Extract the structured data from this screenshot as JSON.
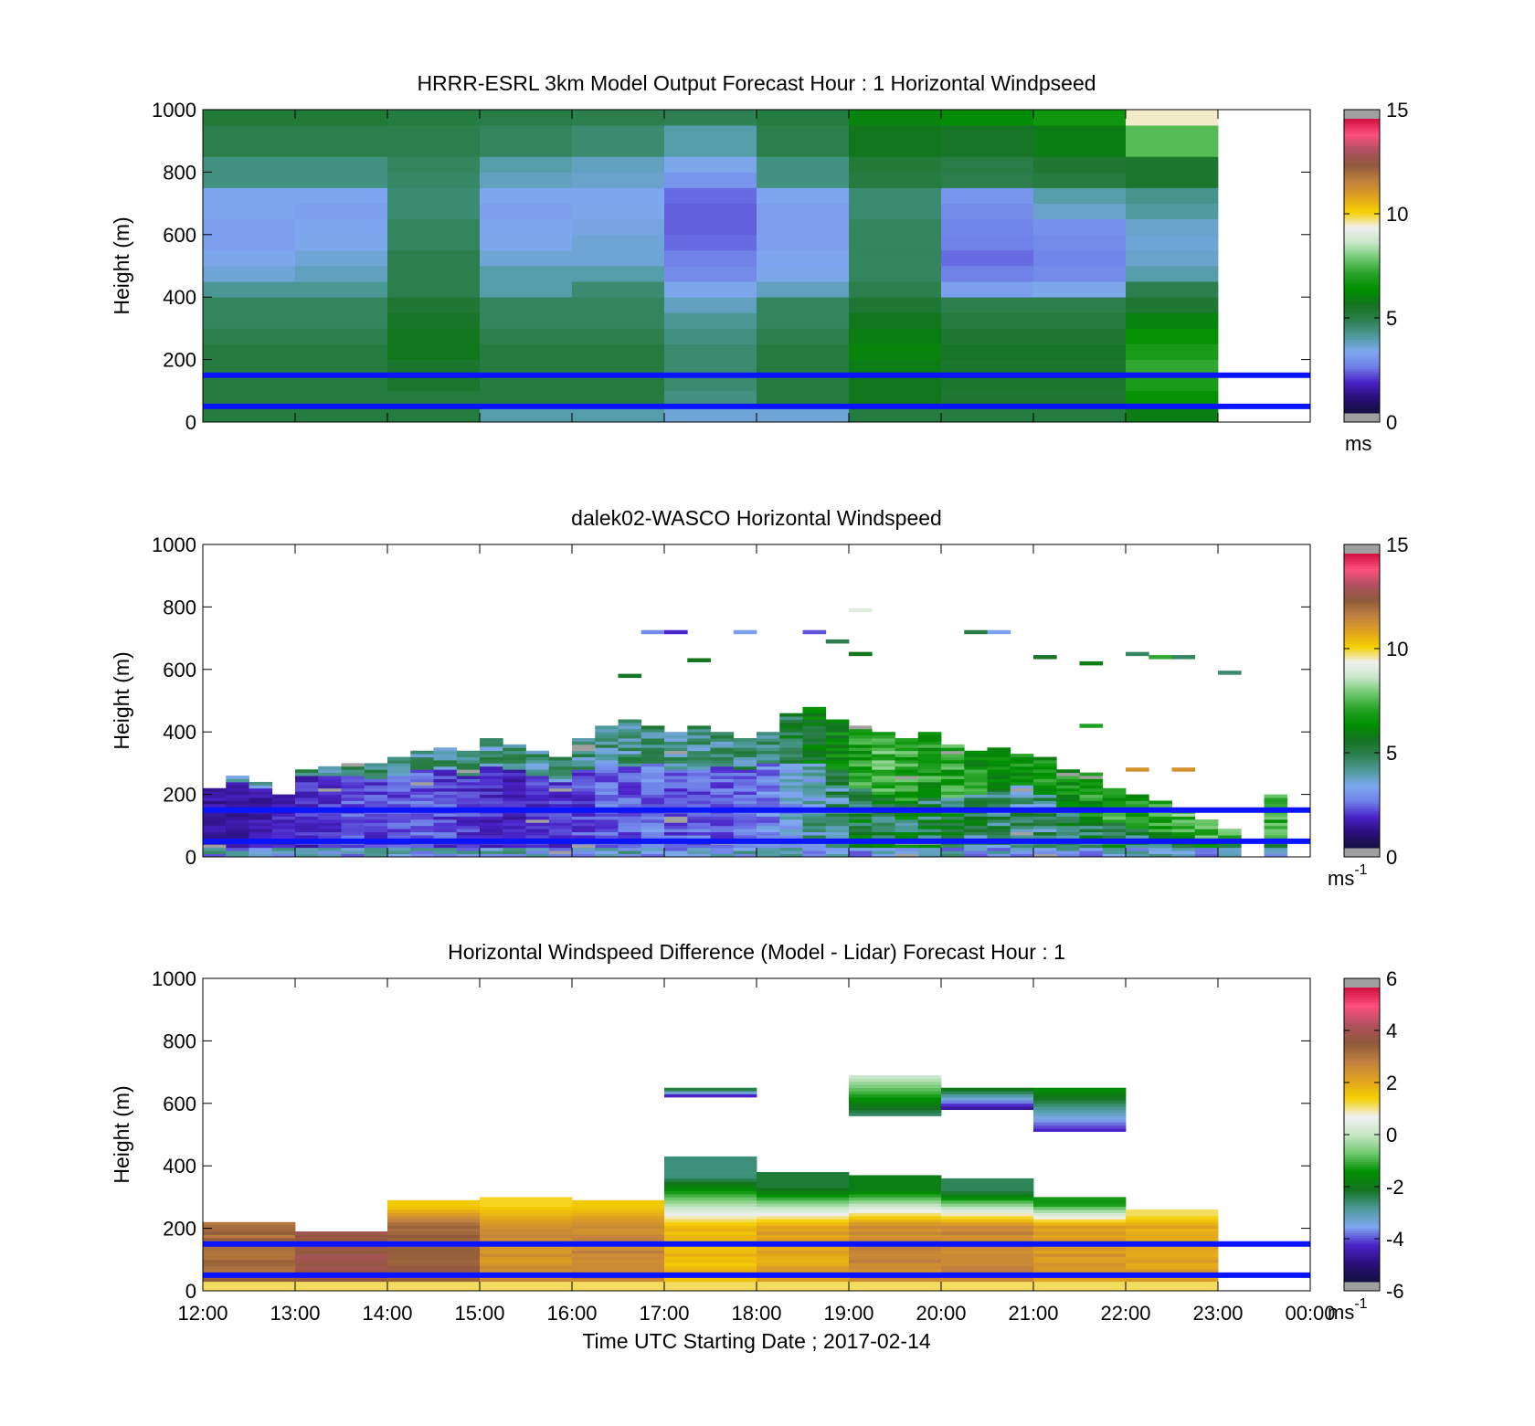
{
  "colors": {
    "windspeed_scale": [
      "#141040",
      "#2a0f7a",
      "#4a22c8",
      "#6f7fe8",
      "#7fa8f0",
      "#4c9a9a",
      "#2e8050",
      "#13731f",
      "#009000",
      "#27a227",
      "#6fc86f",
      "#c7e6c7",
      "#f0f0f0",
      "#f5d000",
      "#e0a020",
      "#c08040",
      "#8f5a3a",
      "#b05060",
      "#ff4f80",
      "#d01040"
    ],
    "difference_scale": [
      "#141040",
      "#2a0f7a",
      "#4a22c8",
      "#7fa8f0",
      "#4c9a9a",
      "#13731f",
      "#009000",
      "#6fc86f",
      "#c7e6c7",
      "#f0f0f0",
      "#f5d000",
      "#e0a020",
      "#c08040",
      "#8f5a3a",
      "#b05060",
      "#ff4f80",
      "#d01040"
    ],
    "reference_line": "#0a14ff",
    "missing": "#a0a0a0"
  },
  "chart_data": [
    {
      "type": "heatmap",
      "title": "HRRR-ESRL 3km Model Output   Forecast Hour : 1 Horizontal Windpseed",
      "ylabel": "Height (m)",
      "xlim": [
        "12:00",
        "00:00"
      ],
      "ylim": [
        0,
        1000
      ],
      "yticks": [
        "0",
        "200",
        "400",
        "600",
        "800",
        "1000"
      ],
      "grid": false,
      "colorbar": {
        "ticks": [
          "0",
          "5",
          "10",
          "15"
        ],
        "unit": "ms",
        "unit_exp": "",
        "range": [
          0,
          15
        ]
      },
      "reference_lines_m": [
        150,
        50
      ],
      "x_start_hours": [
        12,
        13,
        14,
        15,
        16,
        17,
        18,
        19,
        20,
        21,
        22
      ],
      "z_levels_m": [
        0,
        50,
        100,
        150,
        200,
        250,
        300,
        350,
        400,
        450,
        500,
        550,
        600,
        650,
        700,
        750,
        800,
        850,
        900,
        950,
        1000
      ],
      "values_ms": [
        [
          5,
          5,
          5,
          3.8,
          3.8,
          3.4,
          3.4,
          5,
          5,
          5,
          5.8
        ],
        [
          5,
          5,
          5,
          5,
          5,
          4.2,
          5,
          5.6,
          5.2,
          5.2,
          6.4
        ],
        [
          5,
          5,
          5.3,
          5,
          5,
          4.4,
          5,
          5.6,
          5.3,
          5.3,
          6.8
        ],
        [
          5,
          5,
          5.3,
          5,
          5,
          4.4,
          5,
          5.8,
          5.3,
          5.3,
          7.2
        ],
        [
          5,
          5,
          5.6,
          5,
          5,
          4.4,
          5,
          6,
          5.4,
          5.4,
          6.8
        ],
        [
          4.8,
          4.8,
          5.6,
          4.8,
          4.8,
          4.2,
          4.8,
          5.8,
          5.2,
          5.2,
          6.4
        ],
        [
          4.6,
          4.6,
          5.4,
          4.6,
          4.6,
          4,
          4.6,
          5.6,
          5,
          5,
          6
        ],
        [
          4.6,
          4.6,
          5.2,
          4.6,
          4.6,
          3.6,
          4.6,
          5.2,
          4.8,
          4.8,
          5.2
        ],
        [
          4,
          4,
          4.8,
          3.8,
          4.4,
          3.2,
          3.6,
          4.8,
          3,
          3.2,
          4.8
        ],
        [
          3.4,
          3.6,
          4.8,
          3.8,
          3.8,
          2.6,
          3.2,
          4.6,
          2.4,
          2.6,
          3.8
        ],
        [
          3.2,
          3.4,
          4.8,
          3.4,
          3.4,
          2.4,
          3.1,
          4.6,
          2.2,
          2.5,
          3.5
        ],
        [
          3,
          3.2,
          4.6,
          3.2,
          3.4,
          2.2,
          3,
          4.6,
          2.4,
          2.6,
          3.4
        ],
        [
          3,
          3.1,
          4.6,
          3.1,
          3.3,
          2.1,
          3,
          4.6,
          2.5,
          2.7,
          3.5
        ],
        [
          3.1,
          3,
          4.4,
          3,
          3.2,
          2.1,
          3,
          4.4,
          2.6,
          3.5,
          3.9
        ],
        [
          3.1,
          3.1,
          4.4,
          3.1,
          3.1,
          2.2,
          3.1,
          4.4,
          2.8,
          3.8,
          4.1
        ],
        [
          4.2,
          4.2,
          4.5,
          3.6,
          3.5,
          2.8,
          4.2,
          5,
          4.8,
          5,
          5.3
        ],
        [
          4.2,
          4.2,
          4.6,
          3.8,
          3.6,
          3.2,
          4.2,
          5.1,
          4.9,
          5.2,
          5.3
        ],
        [
          4.8,
          4.8,
          4.8,
          4.6,
          4.4,
          3.8,
          4.8,
          5.6,
          5.4,
          5.8,
          7.6
        ],
        [
          4.8,
          4.8,
          4.8,
          4.6,
          4.4,
          3.8,
          4.8,
          5.6,
          5.4,
          5.8,
          7.6
        ],
        [
          5.1,
          5.1,
          5,
          4.9,
          4.8,
          4.7,
          5,
          6,
          6.2,
          6.6,
          9.6
        ],
        [
          5.1,
          5.1,
          5,
          4.9,
          4.8,
          4.7,
          5,
          6,
          6.2,
          6.6,
          9.6
        ]
      ]
    },
    {
      "type": "heatmap",
      "title": "dalek02-WASCO  Horizontal Windspeed",
      "ylabel": "Height (m)",
      "xlim": [
        "12:00",
        "00:00"
      ],
      "ylim": [
        0,
        1000
      ],
      "yticks": [
        "0",
        "200",
        "400",
        "600",
        "800",
        "1000"
      ],
      "grid": false,
      "colorbar": {
        "ticks": [
          "0",
          "5",
          "10",
          "15"
        ],
        "unit": "ms",
        "unit_exp": "-1",
        "range": [
          0,
          15
        ]
      },
      "reference_lines_m": [
        150,
        50
      ],
      "time_step_min": 15,
      "top_of_profile_m": [
        220,
        260,
        240,
        200,
        280,
        290,
        300,
        300,
        320,
        340,
        350,
        340,
        380,
        360,
        340,
        320,
        380,
        420,
        440,
        420,
        400,
        420,
        400,
        380,
        400,
        460,
        480,
        440,
        420,
        400,
        380,
        400,
        360,
        340,
        350,
        330,
        320,
        280,
        270,
        220,
        200,
        180,
        150,
        120,
        90,
        0,
        200,
        0
      ],
      "lower_layer_top_m": [
        220,
        240,
        220,
        200,
        260,
        260,
        260,
        250,
        260,
        280,
        280,
        260,
        290,
        280,
        260,
        240,
        280,
        300,
        290,
        300,
        280,
        280,
        290,
        280,
        300,
        300,
        300,
        280,
        220,
        200,
        180,
        200,
        190,
        200,
        210,
        230,
        200,
        160,
        130,
        110,
        90,
        80,
        70,
        60,
        50,
        0,
        60,
        0
      ],
      "mean_speed_ms": [
        1.2,
        1.2,
        1.3,
        1.5,
        1.6,
        1.8,
        2,
        1.9,
        2,
        2.1,
        1.9,
        1.8,
        1.6,
        1.5,
        1.7,
        1.8,
        1.9,
        2.2,
        2.1,
        2.4,
        2,
        2.2,
        2.1,
        2.3,
        2.6,
        3.1,
        3.8,
        4.4,
        5,
        5.4,
        5.2,
        4.9,
        5,
        4.6,
        4.4,
        4.3,
        4.5,
        4.6,
        4.7,
        4.9,
        5,
        5.2,
        5.4,
        5.6,
        5.2,
        0,
        5,
        0
      ],
      "sparse_returns": [
        {
          "time": "19:00",
          "height_m": 790,
          "speed_ms": 9.2
        },
        {
          "time": "16:45",
          "height_m": 720,
          "speed_ms": 2.6
        },
        {
          "time": "17:00",
          "height_m": 720,
          "speed_ms": 1.6
        },
        {
          "time": "17:45",
          "height_m": 720,
          "speed_ms": 3
        },
        {
          "time": "18:30",
          "height_m": 720,
          "speed_ms": 2
        },
        {
          "time": "18:45",
          "height_m": 690,
          "speed_ms": 4.8
        },
        {
          "time": "19:00",
          "height_m": 650,
          "speed_ms": 5.6
        },
        {
          "time": "20:15",
          "height_m": 720,
          "speed_ms": 5
        },
        {
          "time": "20:30",
          "height_m": 720,
          "speed_ms": 3
        },
        {
          "time": "21:00",
          "height_m": 640,
          "speed_ms": 5.4
        },
        {
          "time": "21:30",
          "height_m": 620,
          "speed_ms": 5.8
        },
        {
          "time": "22:00",
          "height_m": 650,
          "speed_ms": 4.6
        },
        {
          "time": "22:15",
          "height_m": 640,
          "speed_ms": 7.2
        },
        {
          "time": "22:30",
          "height_m": 640,
          "speed_ms": 4.6
        },
        {
          "time": "23:00",
          "height_m": 590,
          "speed_ms": 4.4
        },
        {
          "time": "16:30",
          "height_m": 580,
          "speed_ms": 5.4
        },
        {
          "time": "17:15",
          "height_m": 630,
          "speed_ms": 5.6
        },
        {
          "time": "21:30",
          "height_m": 420,
          "speed_ms": 7
        },
        {
          "time": "15:00",
          "height_m": 360,
          "speed_ms": 4.6
        },
        {
          "time": "22:00",
          "height_m": 280,
          "speed_ms": 11.4
        },
        {
          "time": "22:30",
          "height_m": 280,
          "speed_ms": 11.4
        }
      ]
    },
    {
      "type": "heatmap",
      "title": "Horizontal Windspeed Difference (Model - Lidar) Forecast Hour : 1",
      "xlabel": "Time UTC  Starting Date ; 2017-02-14",
      "ylabel": "Height (m)",
      "xticks": [
        "12:00",
        "13:00",
        "14:00",
        "15:00",
        "16:00",
        "17:00",
        "18:00",
        "19:00",
        "20:00",
        "21:00",
        "22:00",
        "23:00",
        "00:00"
      ],
      "ylim": [
        0,
        1000
      ],
      "yticks": [
        "0",
        "200",
        "400",
        "600",
        "800",
        "1000"
      ],
      "grid": false,
      "colorbar": {
        "ticks": [
          "-6",
          "-4",
          "-2",
          "0",
          "2",
          "4",
          "6"
        ],
        "unit": "ms",
        "unit_exp": "-1",
        "range": [
          -6,
          6
        ]
      },
      "reference_lines_m": [
        150,
        50
      ],
      "x_start_hours": [
        12,
        13,
        14,
        15,
        16,
        17,
        18,
        19,
        20,
        21,
        22
      ],
      "column_top_m": [
        215,
        190,
        290,
        300,
        290,
        425,
        375,
        365,
        360,
        300,
        255
      ],
      "low_level_diff_ms": [
        3.4,
        4,
        3.6,
        2.6,
        2.8,
        1.8,
        2.2,
        2.8,
        2.8,
        2.4,
        2.2
      ],
      "upper_level_diff_ms": [
        3.2,
        4,
        1.6,
        1.4,
        1.6,
        -2.8,
        -2.4,
        -2,
        -2.6,
        -1.4,
        1.2
      ],
      "upper_patches": [
        {
          "start": "17:00",
          "end": "18:00",
          "bottom_m": 620,
          "top_m": 650,
          "diff_ms": -3
        },
        {
          "start": "19:00",
          "end": "20:00",
          "bottom_m": 560,
          "top_m": 690,
          "diff_ms": -1.2
        },
        {
          "start": "20:00",
          "end": "21:00",
          "bottom_m": 580,
          "top_m": 645,
          "diff_ms": -3.4
        },
        {
          "start": "21:00",
          "end": "22:00",
          "bottom_m": 510,
          "top_m": 645,
          "diff_ms": -3
        }
      ]
    }
  ]
}
